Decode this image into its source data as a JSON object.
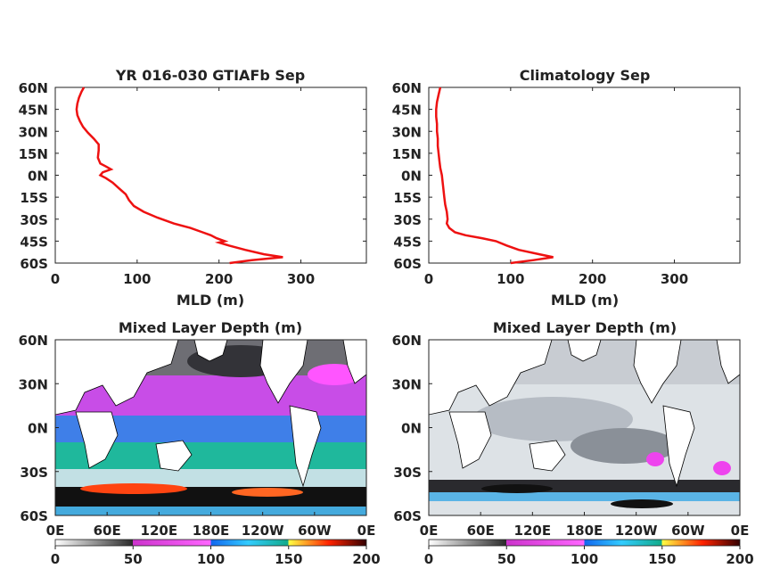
{
  "chart_data": [
    {
      "type": "line",
      "title": "YR 016-030 GTIAFb Sep",
      "xlabel": "MLD (m)",
      "ylabel": "",
      "xlim": [
        0,
        380
      ],
      "ylim": [
        -60,
        60
      ],
      "xticks": [
        0,
        100,
        200,
        300
      ],
      "yticks": [
        60,
        45,
        30,
        15,
        0,
        -15,
        -30,
        -45,
        -60
      ],
      "yticklabels": [
        "60N",
        "45N",
        "30N",
        "15N",
        "0N",
        "15S",
        "30S",
        "45S",
        "60S"
      ],
      "color": "#ee1111",
      "series": [
        {
          "x": [
            35,
            32,
            29,
            27,
            26,
            27,
            30,
            34,
            40,
            47,
            53,
            53,
            52,
            55,
            62,
            68,
            58,
            55,
            62,
            70,
            78,
            86,
            90,
            96,
            108,
            125,
            145,
            165,
            180,
            190,
            197,
            207,
            200,
            212,
            232,
            255,
            278,
            240,
            213
          ],
          "y": [
            60,
            57,
            53,
            49,
            45,
            41,
            37,
            33,
            29,
            25,
            21,
            17,
            12,
            8,
            6,
            4,
            2,
            0,
            -2,
            -5,
            -9,
            -13,
            -17,
            -21,
            -25,
            -29,
            -33,
            -36,
            -39,
            -41,
            -43,
            -45,
            -46,
            -48,
            -51,
            -54,
            -56,
            -58,
            -60
          ]
        }
      ]
    },
    {
      "type": "line",
      "title": "Climatology Sep",
      "xlabel": "MLD (m)",
      "ylabel": "",
      "xlim": [
        0,
        380
      ],
      "ylim": [
        -60,
        60
      ],
      "xticks": [
        0,
        100,
        200,
        300
      ],
      "yticks": [
        60,
        45,
        30,
        15,
        0,
        -15,
        -30,
        -45,
        -60
      ],
      "yticklabels": [
        "60N",
        "45N",
        "30N",
        "15N",
        "0N",
        "15S",
        "30S",
        "45S",
        "60S"
      ],
      "color": "#ee1111",
      "series": [
        {
          "x": [
            14,
            12,
            10,
            9,
            9,
            10,
            10,
            11,
            11,
            12,
            13,
            14,
            16,
            17,
            18,
            19,
            20,
            22,
            23,
            22,
            25,
            32,
            45,
            65,
            82,
            95,
            110,
            135,
            152,
            128,
            100
          ],
          "y": [
            60,
            55,
            50,
            45,
            40,
            35,
            30,
            25,
            20,
            15,
            10,
            5,
            0,
            -5,
            -10,
            -15,
            -20,
            -25,
            -30,
            -33,
            -36,
            -39,
            -41,
            -43,
            -45,
            -48,
            -51,
            -54,
            -56,
            -58,
            -60
          ]
        }
      ]
    },
    {
      "type": "heatmap",
      "title": "Mixed Layer Depth (m)",
      "xticklabels": [
        "0E",
        "60E",
        "120E",
        "180E",
        "120W",
        "60W",
        "0E"
      ],
      "yticklabels": [
        "60N",
        "30N",
        "0N",
        "30S",
        "60S"
      ],
      "colorbar": {
        "range": [
          0,
          200
        ],
        "ticks": [
          0,
          50,
          100,
          150,
          200
        ]
      }
    },
    {
      "type": "heatmap",
      "title": "Mixed Layer Depth (m)",
      "xticklabels": [
        "0E",
        "60E",
        "120E",
        "180E",
        "120W",
        "60W",
        "0E"
      ],
      "yticklabels": [
        "60N",
        "30N",
        "0N",
        "30S",
        "60S"
      ],
      "colorbar": {
        "range": [
          0,
          200
        ],
        "ticks": [
          0,
          50,
          100,
          150,
          200
        ]
      }
    }
  ]
}
